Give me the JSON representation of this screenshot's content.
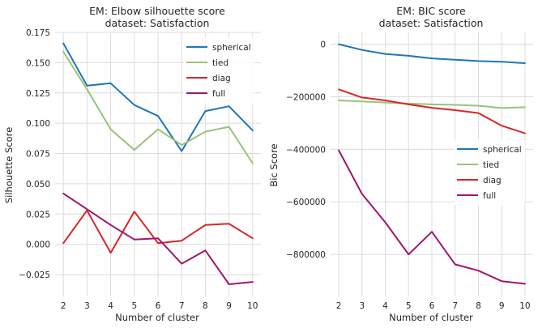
{
  "chart_data": [
    {
      "type": "line",
      "title": "EM: Elbow silhouette score",
      "subtitle": "dataset: Satisfaction",
      "xlabel": "Number of cluster",
      "ylabel": "Silhouette Score",
      "x": [
        2,
        3,
        4,
        5,
        6,
        7,
        8,
        9,
        10
      ],
      "xticks": [
        "2",
        "3",
        "4",
        "5",
        "6",
        "7",
        "8",
        "9",
        "10"
      ],
      "xlim": [
        1.65,
        10.35
      ],
      "ylim": [
        -0.043,
        0.175
      ],
      "yticks": [
        -0.025,
        0.0,
        0.025,
        0.05,
        0.075,
        0.1,
        0.125,
        0.15,
        0.175
      ],
      "ytick_labels": [
        "−0.025",
        "0.000",
        "0.025",
        "0.050",
        "0.075",
        "0.100",
        "0.125",
        "0.150",
        "0.175"
      ],
      "grid": true,
      "legend": "top-right",
      "series": [
        {
          "name": "spherical",
          "color": "#1f77b4",
          "values": [
            0.166,
            0.131,
            0.133,
            0.115,
            0.106,
            0.077,
            0.11,
            0.114,
            0.094
          ]
        },
        {
          "name": "tied",
          "color": "#98c379",
          "values": [
            0.159,
            0.128,
            0.095,
            0.078,
            0.095,
            0.082,
            0.093,
            0.097,
            0.067
          ]
        },
        {
          "name": "diag",
          "color": "#d62728",
          "values": [
            0.001,
            0.028,
            -0.007,
            0.027,
            0.001,
            0.003,
            0.016,
            0.017,
            0.005
          ]
        },
        {
          "name": "full",
          "color": "#a0176d",
          "values": [
            0.042,
            0.029,
            0.016,
            0.004,
            0.005,
            -0.016,
            -0.005,
            -0.033,
            -0.031
          ]
        }
      ]
    },
    {
      "type": "line",
      "title": "EM: BIC score",
      "subtitle": "dataset: Satisfaction",
      "xlabel": "Number of cluster",
      "ylabel": "Bic Score",
      "x": [
        2,
        3,
        4,
        5,
        6,
        7,
        8,
        9,
        10
      ],
      "xticks": [
        "2",
        "3",
        "4",
        "5",
        "6",
        "7",
        "8",
        "9",
        "10"
      ],
      "xlim": [
        1.65,
        10.35
      ],
      "ylim": [
        -960000,
        45000
      ],
      "yticks": [
        -800000,
        -600000,
        -400000,
        -200000,
        0
      ],
      "ytick_labels": [
        "−800000",
        "−600000",
        "−400000",
        "−200000",
        "0"
      ],
      "grid": true,
      "legend": "center-right",
      "series": [
        {
          "name": "spherical",
          "color": "#1f77b4",
          "values": [
            0,
            -22000,
            -37000,
            -44000,
            -54000,
            -59000,
            -64000,
            -67000,
            -72000
          ]
        },
        {
          "name": "tied",
          "color": "#98c379",
          "values": [
            -214000,
            -218000,
            -222000,
            -226000,
            -229000,
            -231000,
            -234000,
            -243000,
            -240000
          ]
        },
        {
          "name": "diag",
          "color": "#d62728",
          "values": [
            -172000,
            -203000,
            -214000,
            -229000,
            -242000,
            -251000,
            -262000,
            -310000,
            -339000
          ]
        },
        {
          "name": "full",
          "color": "#a0176d",
          "values": [
            -404000,
            -570000,
            -678000,
            -800000,
            -714000,
            -838000,
            -862000,
            -902000,
            -912000
          ]
        }
      ]
    }
  ]
}
